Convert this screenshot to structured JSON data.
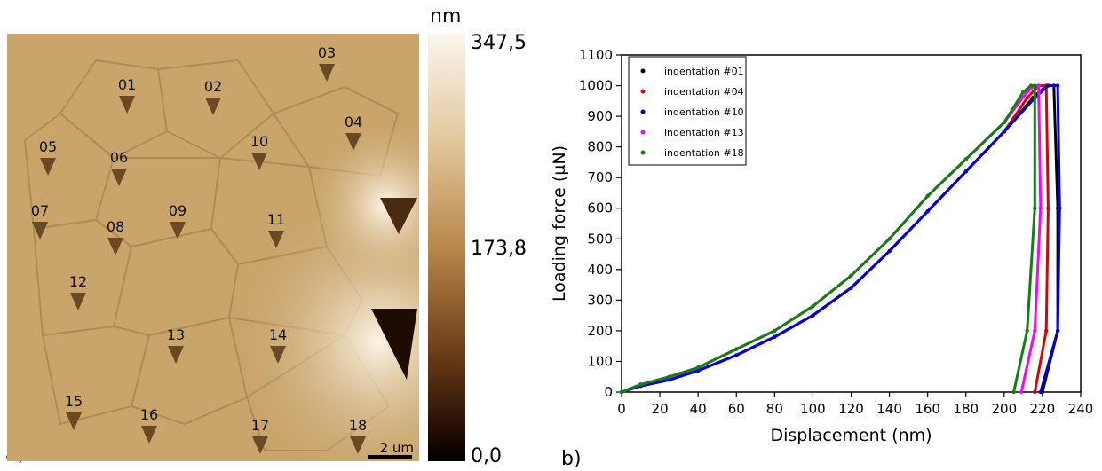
{
  "panel_a": {
    "label": "a)",
    "markers": [
      "01",
      "02",
      "03",
      "04",
      "05",
      "06",
      "07",
      "08",
      "09",
      "10",
      "11",
      "12",
      "13",
      "14",
      "15",
      "16",
      "17",
      "18"
    ],
    "scale_bar": "2 um",
    "colorbar": {
      "unit": "nm",
      "max": "347,5",
      "mid": "173,8",
      "min": "0,0"
    }
  },
  "panel_b": {
    "label": "b)"
  },
  "chart_data": {
    "type": "scatter",
    "xlabel": "Displacement (nm)",
    "ylabel": "Loading force (µN)",
    "xlim": [
      0,
      240
    ],
    "ylim": [
      0,
      1100
    ],
    "xticks": [
      0,
      20,
      40,
      60,
      80,
      100,
      120,
      140,
      160,
      180,
      200,
      220,
      240
    ],
    "yticks": [
      0,
      100,
      200,
      300,
      400,
      500,
      600,
      700,
      800,
      900,
      1000,
      1100
    ],
    "grid": false,
    "legend_position": "top-left",
    "series": [
      {
        "name": "indentation #01",
        "color": "#000000",
        "x": [
          0,
          10,
          25,
          40,
          60,
          80,
          100,
          120,
          140,
          160,
          180,
          200,
          215,
          222,
          226,
          228,
          228,
          220
        ],
        "y": [
          0,
          20,
          40,
          70,
          120,
          180,
          250,
          340,
          460,
          590,
          720,
          850,
          960,
          1000,
          1000,
          600,
          200,
          0
        ]
      },
      {
        "name": "indentation #04",
        "color": "#e00000",
        "x": [
          0,
          10,
          25,
          40,
          60,
          80,
          100,
          120,
          140,
          160,
          180,
          200,
          212,
          218,
          222,
          223,
          222,
          216
        ],
        "y": [
          0,
          20,
          40,
          70,
          120,
          180,
          250,
          340,
          460,
          590,
          720,
          850,
          960,
          1000,
          1000,
          600,
          200,
          0
        ]
      },
      {
        "name": "indentation #10",
        "color": "#0000e0",
        "x": [
          0,
          10,
          25,
          40,
          60,
          80,
          100,
          120,
          140,
          160,
          180,
          200,
          216,
          223,
          228,
          229,
          228,
          219
        ],
        "y": [
          0,
          20,
          40,
          70,
          120,
          180,
          250,
          340,
          460,
          590,
          720,
          850,
          960,
          1000,
          1000,
          600,
          200,
          0
        ]
      },
      {
        "name": "indentation #13",
        "color": "#ff00ff",
        "x": [
          0,
          10,
          25,
          40,
          60,
          80,
          100,
          120,
          140,
          160,
          180,
          200,
          212,
          216,
          218,
          219,
          216,
          209
        ],
        "y": [
          0,
          25,
          50,
          80,
          140,
          200,
          280,
          380,
          500,
          640,
          760,
          880,
          980,
          1000,
          1000,
          600,
          200,
          0
        ]
      },
      {
        "name": "indentation #18",
        "color": "#108010",
        "x": [
          0,
          10,
          25,
          40,
          60,
          80,
          100,
          120,
          140,
          160,
          180,
          200,
          210,
          214,
          216,
          216,
          212,
          205
        ],
        "y": [
          0,
          25,
          50,
          80,
          140,
          200,
          280,
          380,
          500,
          640,
          760,
          880,
          980,
          1000,
          1000,
          600,
          200,
          0
        ]
      }
    ]
  }
}
